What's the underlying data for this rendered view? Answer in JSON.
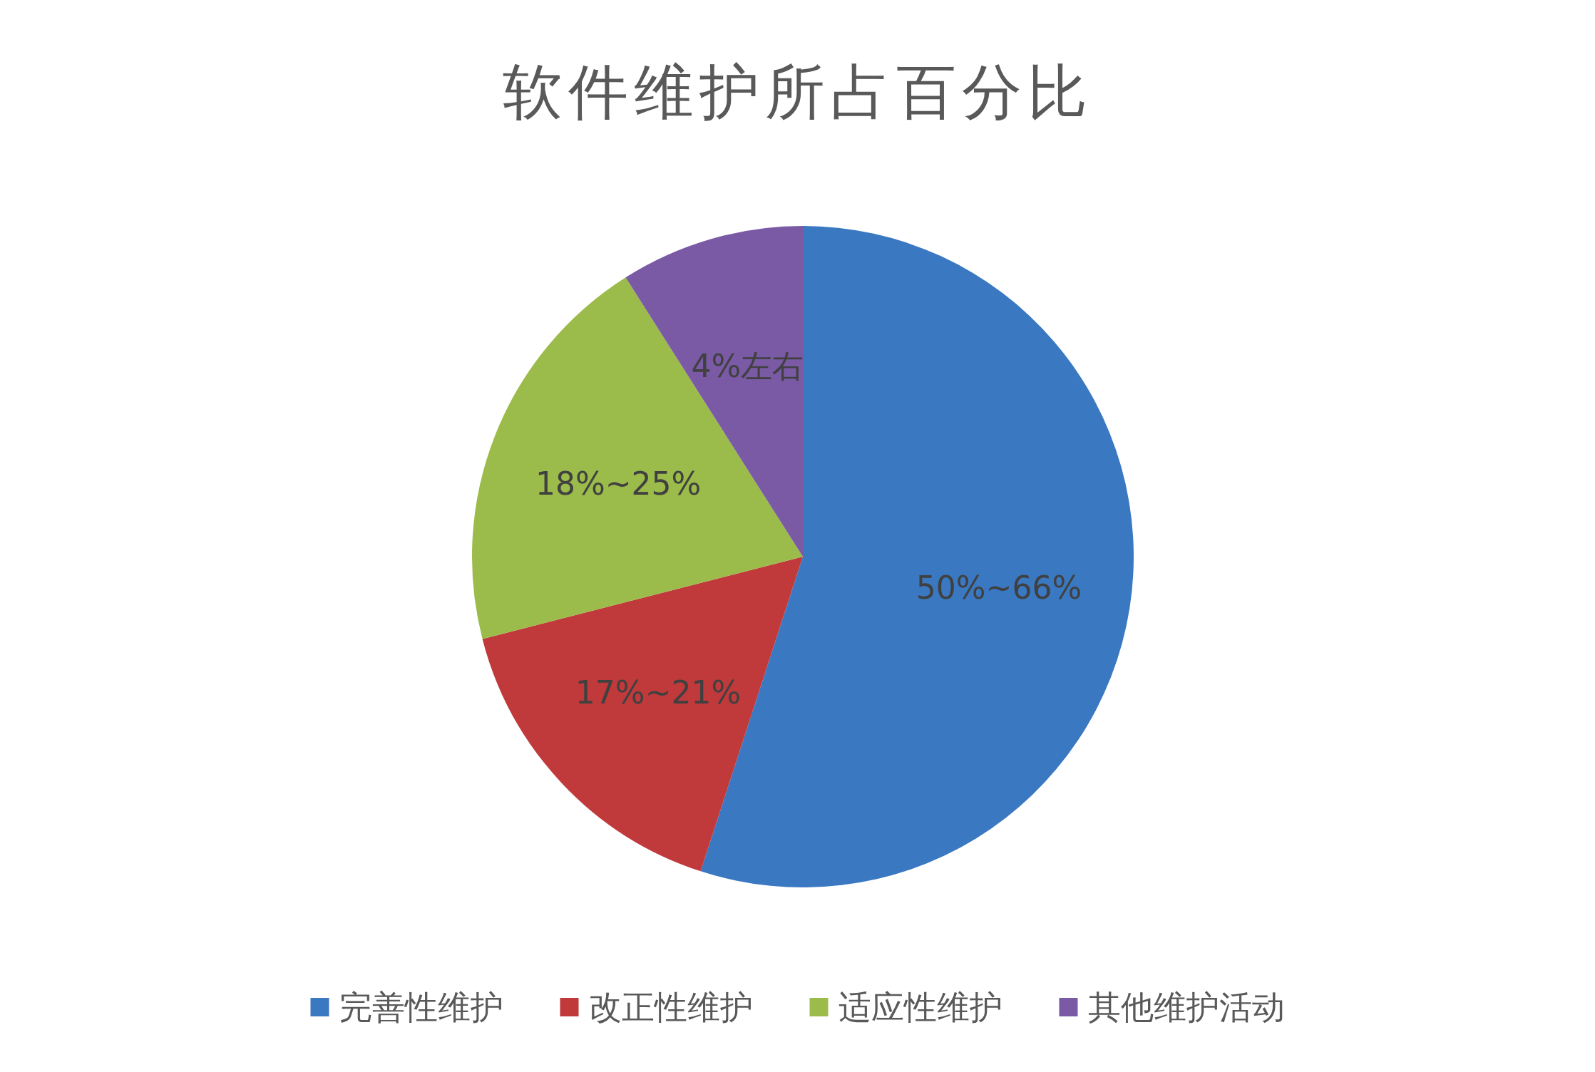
{
  "chart_data": {
    "type": "pie",
    "title": "软件维护所占百分比",
    "categories": [
      "完善性维护",
      "改正性维护",
      "适应性维护",
      "其他维护活动"
    ],
    "values": [
      55,
      16,
      20,
      9
    ],
    "colors": [
      "#3a78c2",
      "#c0393b",
      "#9bbb4a",
      "#7a5aa5"
    ],
    "annotations": [
      "50%~66%",
      "17%~21%",
      "18%~25%",
      "4%左右"
    ],
    "legend": "bottom"
  }
}
